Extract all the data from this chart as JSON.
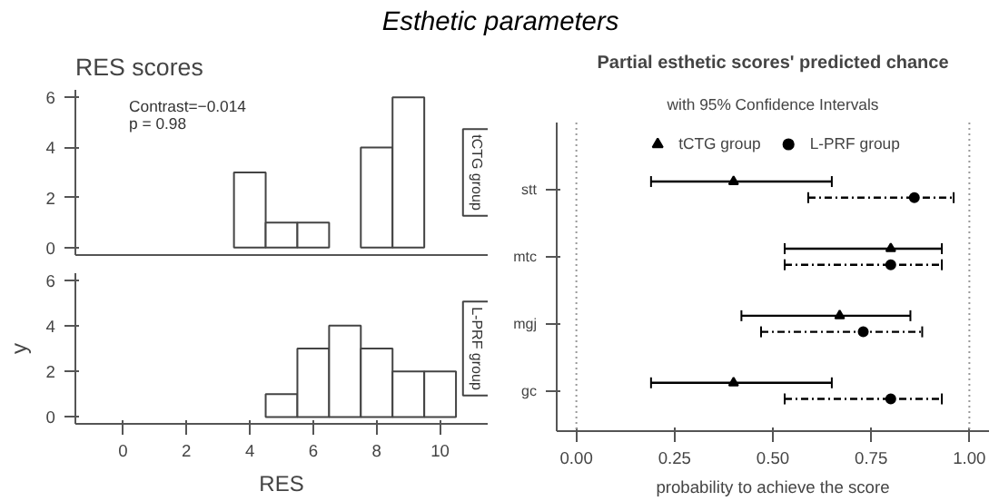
{
  "chart_data": [
    {
      "type": "other",
      "title": "Esthetic parameters"
    },
    {
      "type": "histogram",
      "title": "RES scores",
      "annotations": [
        "Contrast=−0.014",
        "p = 0.98",
        "tCTG group"
      ],
      "bins": [
        -0.5,
        0.5,
        1.5,
        2.5,
        3.5,
        4.5,
        5.5,
        6.5,
        7.5,
        8.5,
        9.5,
        10.5
      ],
      "values": [
        0,
        0,
        0,
        0,
        3,
        1,
        1,
        0,
        4,
        6,
        0
      ],
      "color": "#ffffff",
      "xlim": [
        -1.5,
        11.5
      ],
      "xticks": [
        0,
        2,
        4,
        6,
        8,
        10
      ],
      "ylim": [
        -0.3,
        6.3
      ],
      "yticks": [
        0,
        2,
        4,
        6
      ],
      "tick_labels": "y",
      "grid": false
    },
    {
      "type": "histogram",
      "annotations": [
        "L-PRF group"
      ],
      "xlabel": "RES",
      "ylabel": "y",
      "bins": [
        -0.5,
        0.5,
        1.5,
        2.5,
        3.5,
        4.5,
        5.5,
        6.5,
        7.5,
        8.5,
        9.5,
        10.5
      ],
      "values": [
        0,
        0,
        0,
        0,
        0,
        1,
        3,
        4,
        3,
        2,
        2
      ],
      "color": "#ffffff",
      "xlim": [
        -1.5,
        11.5
      ],
      "xticks": [
        0,
        2,
        4,
        6,
        8,
        10
      ],
      "ylim": [
        -0.3,
        6.3
      ],
      "yticks": [
        0,
        2,
        4,
        6
      ],
      "grid": false
    },
    {
      "type": "scatter",
      "orientation": "horizontal",
      "title": "Partial esthetic scores' predicted chance",
      "subtitle": "with 95% Confidence Intervals",
      "xlabel": "probability to achieve the score",
      "categories": [
        "stt",
        "mtc",
        "mgj",
        "gc"
      ],
      "xlim": [
        -0.05,
        1.05
      ],
      "xticks": [
        "0.00",
        0.25,
        "0.50",
        0.75,
        "1.00"
      ],
      "legend": "top",
      "grid": false,
      "ref_lines": [
        {
          "axis": "x",
          "value": 0,
          "line_style": "dotted",
          "color": "#999999"
        },
        {
          "axis": "x",
          "value": 1,
          "line_style": "dotted",
          "color": "#999999"
        }
      ],
      "series": [
        {
          "name": "tCTG group",
          "color": "#000000",
          "marker": "triangle",
          "line_style": "solid",
          "values": [
            0.4,
            0.8,
            0.67,
            0.4
          ],
          "errors": [
            [
              0.19,
              0.65
            ],
            [
              0.53,
              0.93
            ],
            [
              0.42,
              0.85
            ],
            [
              0.19,
              0.65
            ]
          ]
        },
        {
          "name": "L-PRF group",
          "color": "#000000",
          "marker": "circle",
          "line_style": "dashed",
          "values": [
            0.86,
            0.8,
            0.73,
            0.8
          ],
          "errors": [
            [
              0.59,
              0.96
            ],
            [
              0.53,
              0.93
            ],
            [
              0.47,
              0.88
            ],
            [
              0.53,
              0.93
            ]
          ]
        }
      ]
    }
  ]
}
